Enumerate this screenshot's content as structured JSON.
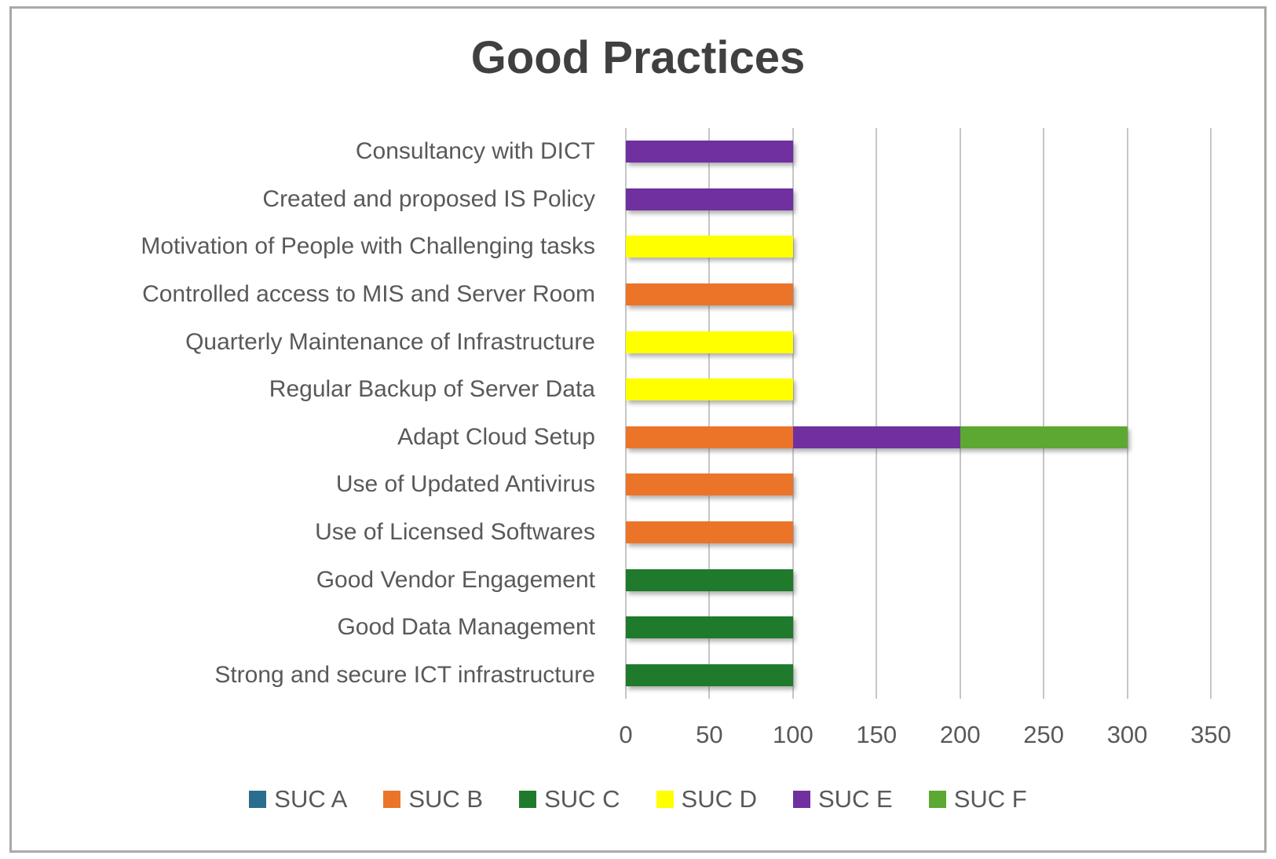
{
  "chart_data": {
    "type": "bar",
    "orientation": "horizontal",
    "stacked": true,
    "title": "Good Practices",
    "categories": [
      "Consultancy with DICT",
      "Created and proposed IS Policy",
      "Motivation of People with Challenging tasks",
      "Controlled access to MIS and Server Room",
      "Quarterly Maintenance of Infrastructure",
      "Regular Backup of Server Data",
      "Adapt Cloud Setup",
      "Use of Updated Antivirus",
      "Use of Licensed Softwares",
      "Good Vendor Engagement",
      "Good Data Management",
      "Strong and secure ICT infrastructure"
    ],
    "series": [
      {
        "name": "SUC A",
        "color": "#2A6D8E",
        "values": [
          0,
          0,
          0,
          0,
          0,
          0,
          0,
          0,
          0,
          0,
          0,
          0
        ]
      },
      {
        "name": "SUC B",
        "color": "#EC7428",
        "values": [
          0,
          0,
          0,
          100,
          0,
          0,
          100,
          100,
          100,
          0,
          0,
          0
        ]
      },
      {
        "name": "SUC C",
        "color": "#1F7A2C",
        "values": [
          0,
          0,
          0,
          0,
          0,
          0,
          0,
          0,
          0,
          100,
          100,
          100
        ]
      },
      {
        "name": "SUC D",
        "color": "#FFFF00",
        "values": [
          0,
          0,
          100,
          0,
          100,
          100,
          0,
          0,
          0,
          0,
          0,
          0
        ]
      },
      {
        "name": "SUC E",
        "color": "#7030A0",
        "values": [
          100,
          100,
          0,
          0,
          0,
          0,
          100,
          0,
          0,
          0,
          0,
          0
        ]
      },
      {
        "name": "SUC F",
        "color": "#5CA832",
        "values": [
          0,
          0,
          0,
          0,
          0,
          0,
          100,
          0,
          0,
          0,
          0,
          0
        ]
      }
    ],
    "x_ticks": [
      0,
      50,
      100,
      150,
      200,
      250,
      300,
      350
    ],
    "xlim": [
      0,
      350
    ],
    "grid": true,
    "legend_position": "bottom"
  },
  "style_colors": {
    "title_text": "#404040",
    "axis_text": "#595959",
    "gridline": "#C6C6C6",
    "chart_border": "#A9A9A9"
  }
}
